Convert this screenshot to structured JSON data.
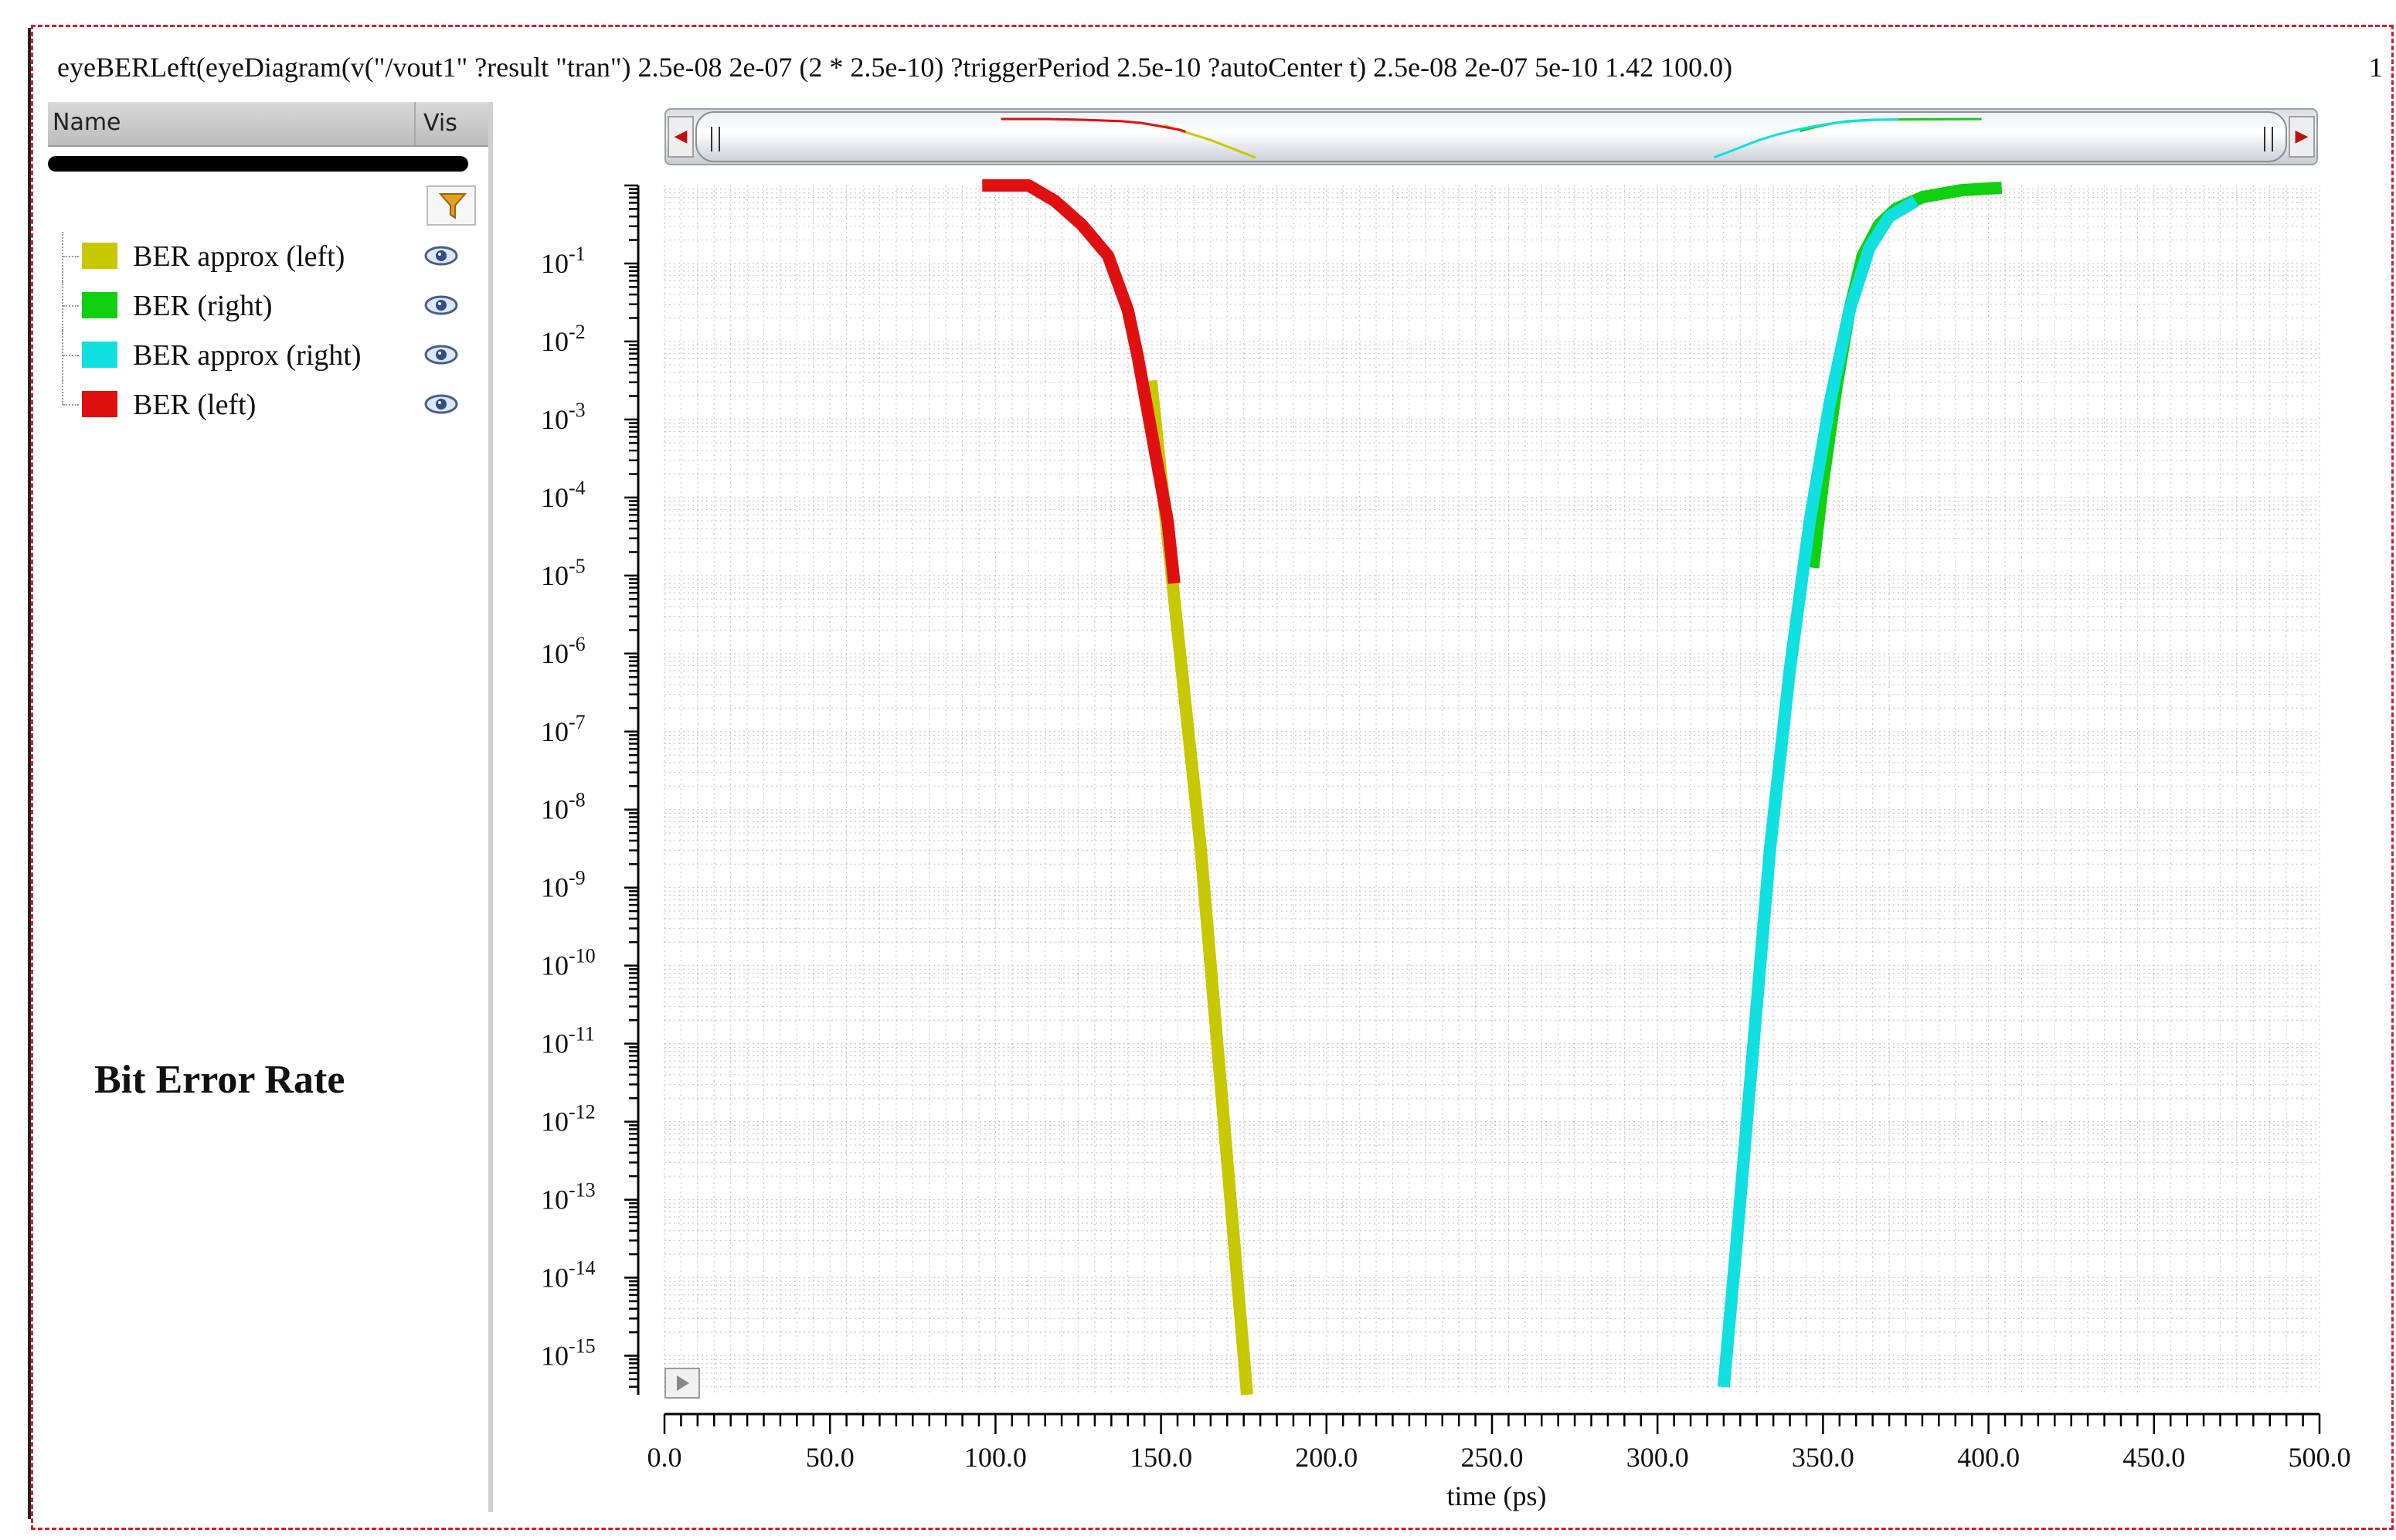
{
  "expression": "eyeBERLeft(eyeDiagram(v(\"/vout1\" ?result \"tran\") 2.5e-08 2e-07 (2 * 2.5e-10) ?triggerPeriod 2.5e-10 ?autoCenter t) 2.5e-08 2e-07 5e-10 1.42 100.0)",
  "expression_index": "1",
  "panel": {
    "header_name": "Name",
    "header_vis": "Vis",
    "legend": [
      {
        "label": "BER approx (left)",
        "color": "#c8c800",
        "icon": "eye-icon"
      },
      {
        "label": "BER (right)",
        "color": "#10d010",
        "icon": "eye-icon"
      },
      {
        "label": "BER approx (right)",
        "color": "#10e0e0",
        "icon": "eye-icon"
      },
      {
        "label": "BER (left)",
        "color": "#e01010",
        "icon": "eye-icon"
      }
    ],
    "filter_icon": "filter-icon",
    "title": "Bit Error Rate"
  },
  "scroller": {
    "left_arrow": "◀",
    "right_arrow": "▶"
  },
  "chart_data": {
    "type": "line",
    "title": "",
    "xlabel": "time (ps)",
    "ylabel": "",
    "xlim": [
      0,
      500
    ],
    "ylim_log10": [
      -15.5,
      0
    ],
    "y_scale": "log",
    "grid": true,
    "x_ticks": [
      "0.0",
      "50.0",
      "100.0",
      "150.0",
      "200.0",
      "250.0",
      "300.0",
      "350.0",
      "400.0",
      "450.0",
      "500.0"
    ],
    "y_ticks": [
      {
        "base": "10",
        "exp": "-1"
      },
      {
        "base": "10",
        "exp": "-2"
      },
      {
        "base": "10",
        "exp": "-3"
      },
      {
        "base": "10",
        "exp": "-4"
      },
      {
        "base": "10",
        "exp": "-5"
      },
      {
        "base": "10",
        "exp": "-6"
      },
      {
        "base": "10",
        "exp": "-7"
      },
      {
        "base": "10",
        "exp": "-8"
      },
      {
        "base": "10",
        "exp": "-9"
      },
      {
        "base": "10",
        "exp": "-10"
      },
      {
        "base": "10",
        "exp": "-11"
      },
      {
        "base": "10",
        "exp": "-12"
      },
      {
        "base": "10",
        "exp": "-13"
      },
      {
        "base": "10",
        "exp": "-14"
      },
      {
        "base": "10",
        "exp": "-15"
      }
    ],
    "series": [
      {
        "name": "BER approx (left)",
        "color": "#c8c800",
        "x": [
          147,
          152,
          157,
          162,
          166,
          170,
          173,
          176
        ],
        "y_log10": [
          -2.5,
          -4.5,
          -6.5,
          -8.5,
          -10.5,
          -12.5,
          -14.0,
          -15.5
        ]
      },
      {
        "name": "BER (right)",
        "color": "#10d010",
        "x": [
          347,
          350,
          354,
          358,
          362,
          367,
          372,
          380,
          392,
          404
        ],
        "y_log10": [
          -4.9,
          -3.8,
          -2.6,
          -1.6,
          -0.9,
          -0.5,
          -0.3,
          -0.15,
          -0.06,
          -0.03
        ]
      },
      {
        "name": "BER approx (right)",
        "color": "#10e0e0",
        "x": [
          320,
          324,
          329,
          334,
          340,
          346,
          352,
          358,
          364,
          370,
          378
        ],
        "y_log10": [
          -15.4,
          -13.5,
          -11.0,
          -8.5,
          -6.2,
          -4.3,
          -2.8,
          -1.6,
          -0.8,
          -0.4,
          -0.2
        ]
      },
      {
        "name": "BER (left)",
        "color": "#e01010",
        "x": [
          96,
          110,
          118,
          126,
          134,
          140,
          143,
          146,
          149,
          152,
          154
        ],
        "y_log10": [
          0.0,
          0.0,
          -0.2,
          -0.5,
          -0.9,
          -1.6,
          -2.2,
          -2.9,
          -3.6,
          -4.3,
          -5.1
        ]
      }
    ]
  }
}
